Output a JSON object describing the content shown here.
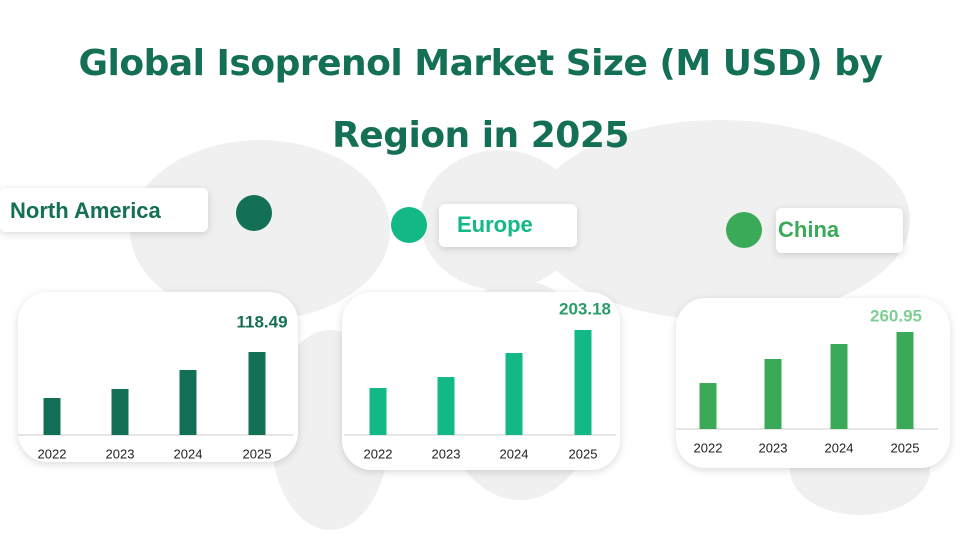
{
  "title": "Global Isoprenol Market Size (M USD) by Region in 2025",
  "chart_data": [
    {
      "type": "bar",
      "title": "North America",
      "categories": [
        "2022",
        "2023",
        "2024",
        "2025"
      ],
      "values": [
        52.8,
        65.7,
        92.8,
        118.49
      ],
      "color": "#136f55",
      "label_color": "#136f55"
    },
    {
      "type": "bar",
      "title": "Europe",
      "categories": [
        "2022",
        "2023",
        "2024",
        "2025"
      ],
      "values": [
        91.0,
        112.2,
        158.7,
        203.18
      ],
      "color": "#12b886",
      "label_color": "#2a9c6a"
    },
    {
      "type": "bar",
      "title": "China",
      "categories": [
        "2022",
        "2023",
        "2024",
        "2025"
      ],
      "values": [
        123.7,
        188.3,
        228.7,
        260.95
      ],
      "color": "#3aaa58",
      "label_color": "#7fcf93"
    }
  ]
}
